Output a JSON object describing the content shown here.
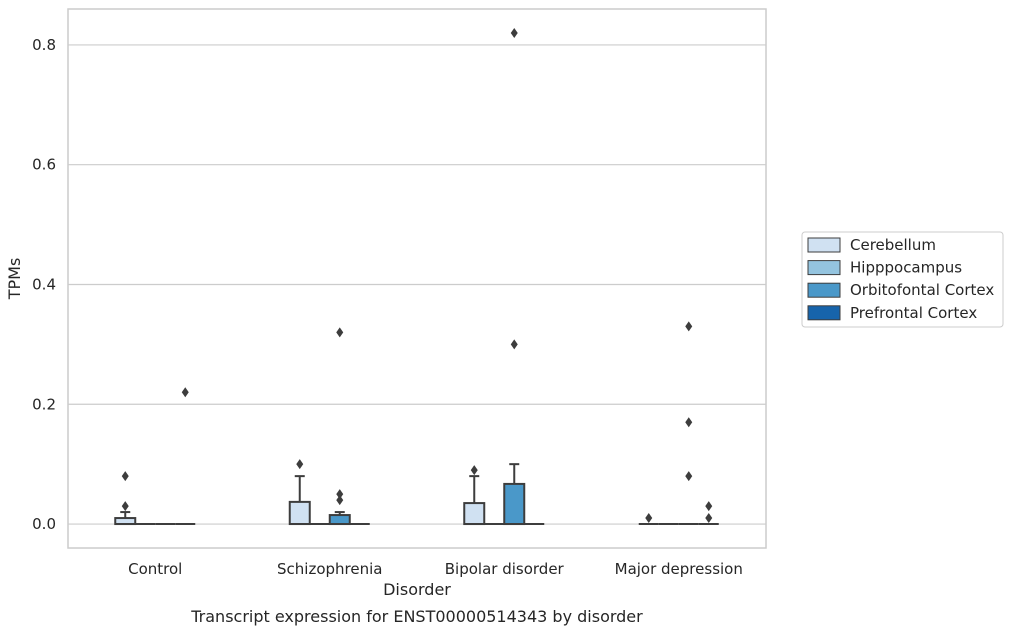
{
  "chart_data": {
    "type": "box",
    "title": "",
    "caption": "Transcript expression for ENST00000514343 by disorder",
    "xlabel": "Disorder",
    "ylabel": "TPMs",
    "ylim": [
      -0.04,
      0.86
    ],
    "yticks": [
      0.0,
      0.2,
      0.4,
      0.6,
      0.8
    ],
    "ytick_labels": [
      "0.0",
      "0.2",
      "0.4",
      "0.6",
      "0.8"
    ],
    "grid": "horizontal",
    "legend_position": "right",
    "categories": [
      "Control",
      "Schizophrenia",
      "Bipolar disorder",
      "Major depression"
    ],
    "series": [
      {
        "name": "Cerebellum",
        "color": "#d0e1f2",
        "boxes": [
          {
            "q1": 0.0,
            "median": 0.0,
            "q3": 0.01,
            "whisker_low": 0.0,
            "whisker_high": 0.02,
            "outliers": [
              0.03,
              0.08
            ]
          },
          {
            "q1": 0.0,
            "median": 0.0,
            "q3": 0.037,
            "whisker_low": 0.0,
            "whisker_high": 0.08,
            "outliers": [
              0.1
            ]
          },
          {
            "q1": 0.0,
            "median": 0.0,
            "q3": 0.035,
            "whisker_low": 0.0,
            "whisker_high": 0.08,
            "outliers": [
              0.09
            ]
          },
          {
            "q1": 0.0,
            "median": 0.0,
            "q3": 0.0,
            "whisker_low": 0.0,
            "whisker_high": 0.0,
            "outliers": [
              0.01
            ]
          }
        ]
      },
      {
        "name": "Hipppocampus",
        "color": "#94c4df",
        "boxes": [
          {
            "q1": 0.0,
            "median": 0.0,
            "q3": 0.0,
            "whisker_low": 0.0,
            "whisker_high": 0.0,
            "outliers": []
          },
          {
            "q1": 0.0,
            "median": 0.0,
            "q3": 0.0,
            "whisker_low": 0.0,
            "whisker_high": 0.0,
            "outliers": []
          },
          {
            "q1": 0.0,
            "median": 0.0,
            "q3": 0.0,
            "whisker_low": 0.0,
            "whisker_high": 0.0,
            "outliers": []
          },
          {
            "q1": 0.0,
            "median": 0.0,
            "q3": 0.0,
            "whisker_low": 0.0,
            "whisker_high": 0.0,
            "outliers": []
          }
        ]
      },
      {
        "name": "Orbitofontal Cortex",
        "color": "#4a98c9",
        "boxes": [
          {
            "q1": 0.0,
            "median": 0.0,
            "q3": 0.0,
            "whisker_low": 0.0,
            "whisker_high": 0.0,
            "outliers": []
          },
          {
            "q1": 0.0,
            "median": 0.0,
            "q3": 0.015,
            "whisker_low": 0.0,
            "whisker_high": 0.02,
            "outliers": [
              0.04,
              0.05,
              0.32
            ]
          },
          {
            "q1": 0.0,
            "median": 0.0,
            "q3": 0.067,
            "whisker_low": 0.0,
            "whisker_high": 0.1,
            "outliers": [
              0.3,
              0.82
            ]
          },
          {
            "q1": 0.0,
            "median": 0.0,
            "q3": 0.0,
            "whisker_low": 0.0,
            "whisker_high": 0.0,
            "outliers": [
              0.08,
              0.17,
              0.33
            ]
          }
        ]
      },
      {
        "name": "Prefrontal Cortex",
        "color": "#1764ab",
        "boxes": [
          {
            "q1": 0.0,
            "median": 0.0,
            "q3": 0.0,
            "whisker_low": 0.0,
            "whisker_high": 0.0,
            "outliers": [
              0.22
            ]
          },
          {
            "q1": 0.0,
            "median": 0.0,
            "q3": 0.0,
            "whisker_low": 0.0,
            "whisker_high": 0.0,
            "outliers": []
          },
          {
            "q1": 0.0,
            "median": 0.0,
            "q3": 0.0,
            "whisker_low": 0.0,
            "whisker_high": 0.0,
            "outliers": []
          },
          {
            "q1": 0.0,
            "median": 0.0,
            "q3": 0.0,
            "whisker_low": 0.0,
            "whisker_high": 0.0,
            "outliers": [
              0.01,
              0.03
            ]
          }
        ]
      }
    ]
  }
}
